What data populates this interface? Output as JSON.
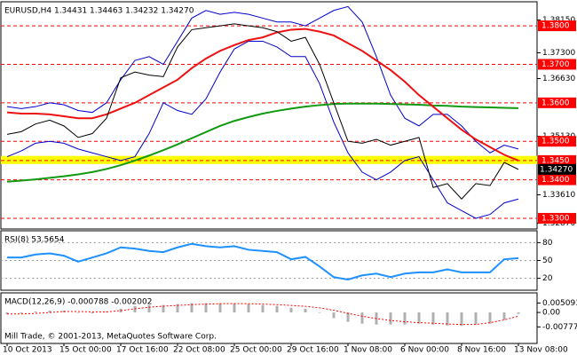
{
  "chart_data": [
    {
      "type": "line",
      "title": "EURUSD,H4  1.34431 1.34463 1.34232 1.34270",
      "ylim": [
        1.32722,
        1.38625
      ],
      "yticks": [
        {
          "value": 1.3815,
          "label": "1.38150"
        },
        {
          "value": 1.373,
          "label": "1.37300"
        },
        {
          "value": 1.3663,
          "label": "1.36630"
        },
        {
          "value": 1.3513,
          "label": "1.35130"
        },
        {
          "value": 1.3361,
          "label": "1.33610"
        },
        {
          "value": 1.3287,
          "label": "1.32870"
        }
      ],
      "levels": [
        {
          "value": 1.38,
          "label": "1.3800"
        },
        {
          "value": 1.37,
          "label": "1.3700"
        },
        {
          "value": 1.36,
          "label": "1.3600"
        },
        {
          "value": 1.35,
          "label": "1.3500"
        },
        {
          "value": 1.345,
          "label": "1.3450"
        },
        {
          "value": 1.34,
          "label": "1.3400"
        },
        {
          "value": 1.33,
          "label": "1.3300"
        }
      ],
      "level_color": "#ff0000",
      "current": {
        "value": 1.3427,
        "label": "1.34270"
      },
      "zone": [
        1.3441,
        1.3462
      ],
      "zone_color": "#ffff00",
      "series": [
        {
          "color": "#0000cc",
          "width": 1,
          "values": [
            1.359,
            1.3585,
            1.359,
            1.36,
            1.3595,
            1.358,
            1.3575,
            1.36,
            1.366,
            1.371,
            1.372,
            1.37,
            1.376,
            1.382,
            1.384,
            1.383,
            1.3835,
            1.383,
            1.382,
            1.381,
            1.381,
            1.38,
            1.382,
            1.384,
            1.385,
            1.381,
            1.372,
            1.362,
            1.356,
            1.354,
            1.357,
            1.357,
            1.354,
            1.35,
            1.347,
            1.349,
            1.348
          ]
        },
        {
          "color": "#0000cc",
          "width": 1,
          "values": [
            1.346,
            1.3475,
            1.3495,
            1.35,
            1.3495,
            1.348,
            1.347,
            1.346,
            1.345,
            1.346,
            1.352,
            1.36,
            1.358,
            1.357,
            1.361,
            1.368,
            1.374,
            1.376,
            1.376,
            1.3745,
            1.372,
            1.372,
            1.365,
            1.355,
            1.347,
            1.342,
            1.34,
            1.342,
            1.345,
            1.346,
            1.34,
            1.334,
            1.332,
            1.33,
            1.331,
            1.334,
            1.335
          ]
        },
        {
          "color": "#119911",
          "width": 2,
          "values": [
            1.3395,
            1.3398,
            1.3401,
            1.3405,
            1.3409,
            1.3414,
            1.342,
            1.3428,
            1.3438,
            1.345,
            1.3463,
            1.3477,
            1.3492,
            1.3508,
            1.3524,
            1.354,
            1.3553,
            1.3563,
            1.3572,
            1.3579,
            1.3585,
            1.359,
            1.3594,
            1.3597,
            1.3598,
            1.3598,
            1.3598,
            1.3597,
            1.3596,
            1.3595,
            1.3593,
            1.3592,
            1.359,
            1.3589,
            1.3588,
            1.3587,
            1.3586
          ]
        },
        {
          "color": "#ee1111",
          "width": 2,
          "values": [
            1.3575,
            1.3572,
            1.3572,
            1.357,
            1.3565,
            1.356,
            1.356,
            1.357,
            1.3585,
            1.36,
            1.362,
            1.364,
            1.366,
            1.369,
            1.3715,
            1.3735,
            1.375,
            1.3763,
            1.377,
            1.3783,
            1.379,
            1.3792,
            1.3785,
            1.3775,
            1.3755,
            1.3735,
            1.371,
            1.3685,
            1.3655,
            1.362,
            1.359,
            1.356,
            1.353,
            1.3505,
            1.3485,
            1.3465,
            1.345
          ]
        },
        {
          "color": "#000000",
          "width": 1,
          "values": [
            1.3518,
            1.3525,
            1.3545,
            1.3555,
            1.354,
            1.351,
            1.352,
            1.356,
            1.3665,
            1.368,
            1.3672,
            1.3668,
            1.3745,
            1.379,
            1.3795,
            1.38,
            1.3805,
            1.38,
            1.3795,
            1.3785,
            1.376,
            1.377,
            1.37,
            1.36,
            1.35,
            1.3495,
            1.3505,
            1.349,
            1.35,
            1.351,
            1.338,
            1.339,
            1.335,
            1.339,
            1.3385,
            1.3445,
            1.3427
          ]
        }
      ]
    },
    {
      "type": "line",
      "title": "RSI(8) 53.5654",
      "ylim": [
        0,
        100
      ],
      "yticks": [
        20,
        50,
        80
      ],
      "series": [
        {
          "color": "#1e90ff",
          "width": 2,
          "values": [
            55,
            55,
            60,
            62,
            58,
            48,
            55,
            62,
            72,
            70,
            66,
            64,
            72,
            78,
            74,
            72,
            74,
            68,
            66,
            64,
            52,
            56,
            40,
            22,
            18,
            25,
            28,
            22,
            28,
            30,
            30,
            35,
            30,
            30,
            30,
            52,
            54
          ]
        }
      ]
    },
    {
      "type": "bar",
      "title": "MACD(12,26,9) -0.000788 -0.002002",
      "note": "Mill Trade, © 2001-2013, MetaQuotes Software Corp.",
      "ylim": [
        -0.01668,
        0.01054
      ],
      "yticks": [
        0.005093,
        {
          "value": 0,
          "label": "0.00"
        },
        -0.007773
      ],
      "categories": [
        "10 Oct 2013",
        null,
        null,
        null,
        "15 Oct 00:00",
        null,
        null,
        null,
        "17 Oct 16:00",
        null,
        null,
        null,
        "22 Oct 08:00",
        null,
        null,
        null,
        "25 Oct 00:00",
        null,
        null,
        null,
        "29 Oct 16:00",
        null,
        null,
        null,
        "1 Nov 08:00",
        null,
        null,
        null,
        "6 Nov 00:00",
        null,
        null,
        null,
        "8 Nov 16:00",
        null,
        null,
        null,
        "13 Nov 08:00"
      ],
      "series": [
        {
          "kind": "bar",
          "color": "#b0b0b0",
          "values": [
            -0.001,
            -0.0005,
            0.0005,
            0.001,
            0.001,
            0.0,
            -0.0005,
            0.0005,
            0.002,
            0.0035,
            0.004,
            0.004,
            0.0045,
            0.005,
            0.005,
            0.005,
            0.0048,
            0.0045,
            0.004,
            0.0035,
            0.0025,
            0.002,
            0.0,
            -0.003,
            -0.005,
            -0.006,
            -0.0065,
            -0.0065,
            -0.0065,
            -0.006,
            -0.0065,
            -0.007,
            -0.0072,
            -0.0065,
            -0.006,
            -0.004,
            -0.0008
          ]
        },
        {
          "kind": "line",
          "color": "#ff0000",
          "values": [
            -0.0008,
            -0.0008,
            -0.0005,
            0,
            0.0005,
            0.0005,
            0.0003,
            0.0003,
            0.001,
            0.002,
            0.0028,
            0.0034,
            0.0038,
            0.0042,
            0.0045,
            0.0047,
            0.0048,
            0.0047,
            0.0045,
            0.0042,
            0.0038,
            0.0033,
            0.0025,
            0.0012,
            -0.0005,
            -0.002,
            -0.0033,
            -0.0043,
            -0.005,
            -0.0055,
            -0.0058,
            -0.0062,
            -0.0065,
            -0.0065,
            -0.0055,
            -0.004,
            -0.002
          ]
        }
      ]
    }
  ]
}
